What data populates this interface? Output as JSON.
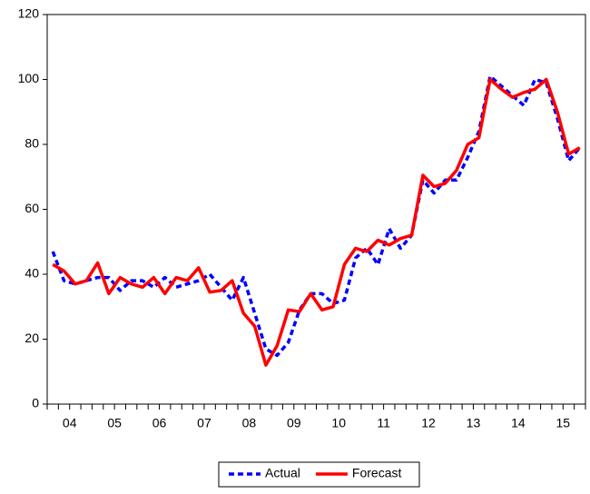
{
  "chart_data": {
    "type": "line",
    "categories": [
      "04",
      null,
      null,
      null,
      "05",
      null,
      null,
      null,
      "06",
      null,
      null,
      null,
      "07",
      null,
      null,
      null,
      "08",
      null,
      null,
      null,
      "09",
      null,
      null,
      null,
      "10",
      null,
      null,
      null,
      "11",
      null,
      null,
      null,
      "12",
      null,
      null,
      null,
      "13",
      null,
      null,
      null,
      "14",
      null,
      null,
      null,
      "15",
      null,
      null,
      null
    ],
    "series": [
      {
        "name": "Actual",
        "color": "#0000ff",
        "dash": true,
        "values": [
          47,
          38,
          37,
          38,
          39,
          39,
          35,
          38,
          38,
          36,
          39,
          36,
          37,
          38,
          40,
          36,
          32,
          39,
          28,
          17,
          15,
          19,
          29,
          34,
          34,
          31,
          32,
          45,
          48,
          43,
          54,
          48,
          52,
          69,
          65,
          69,
          69,
          76,
          84,
          101,
          98,
          95,
          92,
          100,
          99,
          88,
          75,
          79
        ]
      },
      {
        "name": "Forecast",
        "color": "#ff0000",
        "dash": false,
        "values": [
          43,
          41,
          37,
          38,
          43.5,
          34,
          39,
          37,
          36,
          39,
          34,
          39,
          38,
          42,
          34.5,
          35,
          38,
          28,
          24,
          12,
          18,
          29,
          28.5,
          34,
          29,
          30,
          43,
          48,
          47,
          50.5,
          49,
          51,
          52,
          70.5,
          67,
          68,
          72,
          80,
          82,
          100,
          97,
          94.5,
          96,
          97,
          100,
          90,
          77,
          79
        ]
      }
    ],
    "ylim": [
      0,
      120
    ],
    "yticks": [
      0,
      20,
      40,
      60,
      80,
      100,
      120
    ]
  }
}
